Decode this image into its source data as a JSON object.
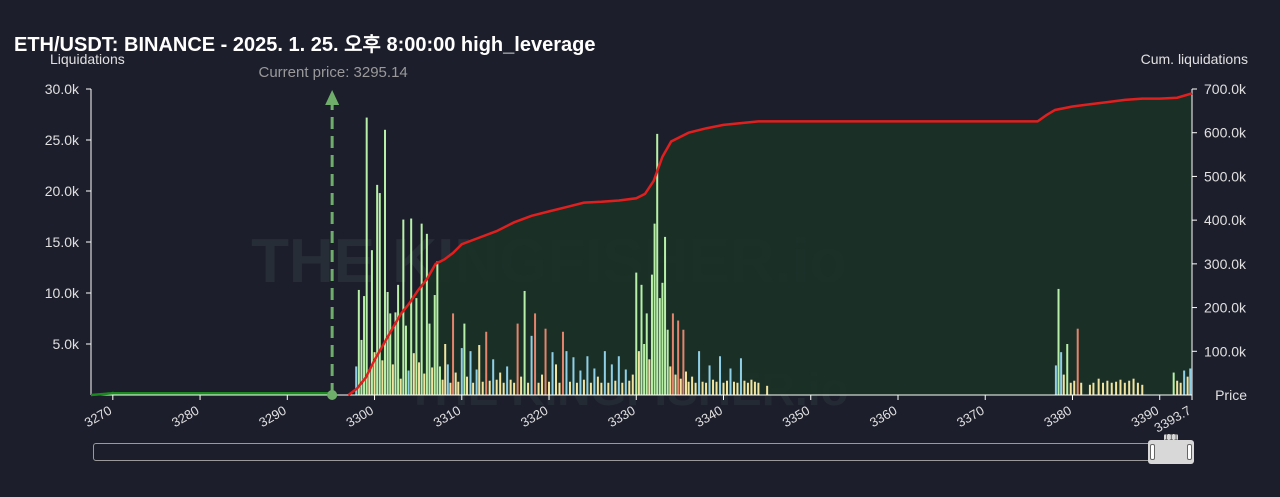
{
  "title": "ETH/USDT: BINANCE - 2025. 1. 25. 오후 8:00:00 high_leverage",
  "chart_data": {
    "type": "bar",
    "xlabel": "Price",
    "ylabel_left": "Liquidations",
    "ylabel_right": "Cum. liquidations",
    "xlim": [
      3267.5,
      3393.7
    ],
    "ylim_left": [
      0,
      30000
    ],
    "ylim_right": [
      0,
      700000
    ],
    "x_ticks": [
      "3270",
      "3280",
      "3290",
      "3300",
      "3310",
      "3320",
      "3330",
      "3340",
      "3350",
      "3360",
      "3370",
      "3380",
      "3390",
      "3393.7"
    ],
    "y_left_ticks": [
      "5.0k",
      "10.0k",
      "15.0k",
      "20.0k",
      "25.0k",
      "30.0k"
    ],
    "y_right_ticks": [
      "100.0k",
      "200.0k",
      "300.0k",
      "400.0k",
      "500.0k",
      "600.0k",
      "700.0k"
    ],
    "current_price": 3295.14,
    "current_price_label": "Current price: 3295.14",
    "watermark": "THE KINGFISHER.io",
    "colors": {
      "bar_green": "#b7f0a6",
      "bar_yellow": "#f2e3a0",
      "bar_blue": "#8fd0e8",
      "bar_red": "#e5846c",
      "cum_below": "#1a8a1f",
      "cum_above": "#e01f1f",
      "fill": "#1a3326",
      "current_line": "#6fae6a"
    },
    "bars": [
      {
        "x": 3297.9,
        "y": 2800,
        "c": "blue"
      },
      {
        "x": 3298.2,
        "y": 10300,
        "c": "green"
      },
      {
        "x": 3298.5,
        "y": 5400,
        "c": "green"
      },
      {
        "x": 3298.8,
        "y": 9700,
        "c": "green"
      },
      {
        "x": 3299.1,
        "y": 27200,
        "c": "green"
      },
      {
        "x": 3299.4,
        "y": 2500,
        "c": "yellow"
      },
      {
        "x": 3299.7,
        "y": 14200,
        "c": "green"
      },
      {
        "x": 3300.0,
        "y": 4200,
        "c": "yellow"
      },
      {
        "x": 3300.3,
        "y": 20600,
        "c": "green"
      },
      {
        "x": 3300.6,
        "y": 19800,
        "c": "green"
      },
      {
        "x": 3300.9,
        "y": 3400,
        "c": "yellow"
      },
      {
        "x": 3301.2,
        "y": 26000,
        "c": "green"
      },
      {
        "x": 3301.5,
        "y": 10100,
        "c": "green"
      },
      {
        "x": 3301.8,
        "y": 8000,
        "c": "green"
      },
      {
        "x": 3302.1,
        "y": 3000,
        "c": "yellow"
      },
      {
        "x": 3302.4,
        "y": 8100,
        "c": "green"
      },
      {
        "x": 3302.7,
        "y": 10800,
        "c": "green"
      },
      {
        "x": 3303.0,
        "y": 1600,
        "c": "yellow"
      },
      {
        "x": 3303.3,
        "y": 17200,
        "c": "green"
      },
      {
        "x": 3303.6,
        "y": 6800,
        "c": "green"
      },
      {
        "x": 3303.9,
        "y": 2400,
        "c": "blue"
      },
      {
        "x": 3304.2,
        "y": 17300,
        "c": "green"
      },
      {
        "x": 3304.5,
        "y": 4100,
        "c": "yellow"
      },
      {
        "x": 3304.8,
        "y": 9500,
        "c": "green"
      },
      {
        "x": 3305.1,
        "y": 3200,
        "c": "yellow"
      },
      {
        "x": 3305.4,
        "y": 16800,
        "c": "green"
      },
      {
        "x": 3305.7,
        "y": 2100,
        "c": "yellow"
      },
      {
        "x": 3306.0,
        "y": 15800,
        "c": "green"
      },
      {
        "x": 3306.3,
        "y": 7000,
        "c": "green"
      },
      {
        "x": 3306.6,
        "y": 2700,
        "c": "yellow"
      },
      {
        "x": 3306.9,
        "y": 9800,
        "c": "green"
      },
      {
        "x": 3307.2,
        "y": 13100,
        "c": "green"
      },
      {
        "x": 3307.5,
        "y": 2800,
        "c": "green"
      },
      {
        "x": 3307.8,
        "y": 1500,
        "c": "yellow"
      },
      {
        "x": 3308.1,
        "y": 5000,
        "c": "yellow"
      },
      {
        "x": 3308.4,
        "y": 3000,
        "c": "blue"
      },
      {
        "x": 3308.7,
        "y": 1200,
        "c": "yellow"
      },
      {
        "x": 3309.0,
        "y": 8000,
        "c": "red"
      },
      {
        "x": 3309.3,
        "y": 2200,
        "c": "yellow"
      },
      {
        "x": 3309.6,
        "y": 1300,
        "c": "yellow"
      },
      {
        "x": 3310.0,
        "y": 4600,
        "c": "blue"
      },
      {
        "x": 3310.3,
        "y": 7000,
        "c": "green"
      },
      {
        "x": 3310.6,
        "y": 1800,
        "c": "yellow"
      },
      {
        "x": 3311.0,
        "y": 4300,
        "c": "blue"
      },
      {
        "x": 3311.3,
        "y": 1200,
        "c": "yellow"
      },
      {
        "x": 3311.7,
        "y": 2500,
        "c": "blue"
      },
      {
        "x": 3312.0,
        "y": 4900,
        "c": "yellow"
      },
      {
        "x": 3312.4,
        "y": 1300,
        "c": "yellow"
      },
      {
        "x": 3312.8,
        "y": 6200,
        "c": "red"
      },
      {
        "x": 3313.2,
        "y": 1400,
        "c": "yellow"
      },
      {
        "x": 3313.6,
        "y": 3500,
        "c": "blue"
      },
      {
        "x": 3314.0,
        "y": 1500,
        "c": "yellow"
      },
      {
        "x": 3314.4,
        "y": 2200,
        "c": "yellow"
      },
      {
        "x": 3314.8,
        "y": 1200,
        "c": "yellow"
      },
      {
        "x": 3315.2,
        "y": 2800,
        "c": "blue"
      },
      {
        "x": 3315.6,
        "y": 1500,
        "c": "yellow"
      },
      {
        "x": 3316.0,
        "y": 1200,
        "c": "yellow"
      },
      {
        "x": 3316.4,
        "y": 7000,
        "c": "red"
      },
      {
        "x": 3316.8,
        "y": 1800,
        "c": "yellow"
      },
      {
        "x": 3317.2,
        "y": 10200,
        "c": "green"
      },
      {
        "x": 3317.6,
        "y": 1200,
        "c": "yellow"
      },
      {
        "x": 3318.0,
        "y": 5800,
        "c": "blue"
      },
      {
        "x": 3318.4,
        "y": 8000,
        "c": "red"
      },
      {
        "x": 3318.8,
        "y": 1200,
        "c": "yellow"
      },
      {
        "x": 3319.2,
        "y": 2000,
        "c": "yellow"
      },
      {
        "x": 3319.6,
        "y": 6500,
        "c": "red"
      },
      {
        "x": 3320.0,
        "y": 1300,
        "c": "yellow"
      },
      {
        "x": 3320.4,
        "y": 4200,
        "c": "blue"
      },
      {
        "x": 3320.8,
        "y": 3000,
        "c": "yellow"
      },
      {
        "x": 3321.2,
        "y": 1200,
        "c": "yellow"
      },
      {
        "x": 3321.6,
        "y": 6200,
        "c": "red"
      },
      {
        "x": 3322.0,
        "y": 4300,
        "c": "blue"
      },
      {
        "x": 3322.4,
        "y": 1300,
        "c": "yellow"
      },
      {
        "x": 3322.8,
        "y": 3700,
        "c": "blue"
      },
      {
        "x": 3323.2,
        "y": 1200,
        "c": "yellow"
      },
      {
        "x": 3323.6,
        "y": 2400,
        "c": "blue"
      },
      {
        "x": 3324.0,
        "y": 1500,
        "c": "yellow"
      },
      {
        "x": 3324.4,
        "y": 3800,
        "c": "blue"
      },
      {
        "x": 3324.8,
        "y": 1200,
        "c": "yellow"
      },
      {
        "x": 3325.2,
        "y": 2600,
        "c": "blue"
      },
      {
        "x": 3325.6,
        "y": 1800,
        "c": "yellow"
      },
      {
        "x": 3326.0,
        "y": 1200,
        "c": "yellow"
      },
      {
        "x": 3326.4,
        "y": 4300,
        "c": "blue"
      },
      {
        "x": 3326.8,
        "y": 1200,
        "c": "yellow"
      },
      {
        "x": 3327.2,
        "y": 3000,
        "c": "blue"
      },
      {
        "x": 3327.6,
        "y": 1400,
        "c": "yellow"
      },
      {
        "x": 3328.0,
        "y": 3800,
        "c": "blue"
      },
      {
        "x": 3328.4,
        "y": 1200,
        "c": "yellow"
      },
      {
        "x": 3328.8,
        "y": 2500,
        "c": "blue"
      },
      {
        "x": 3329.2,
        "y": 1400,
        "c": "yellow"
      },
      {
        "x": 3329.6,
        "y": 2000,
        "c": "yellow"
      },
      {
        "x": 3330.0,
        "y": 12000,
        "c": "green"
      },
      {
        "x": 3330.3,
        "y": 4300,
        "c": "yellow"
      },
      {
        "x": 3330.6,
        "y": 10800,
        "c": "green"
      },
      {
        "x": 3330.9,
        "y": 5000,
        "c": "green"
      },
      {
        "x": 3331.2,
        "y": 8000,
        "c": "green"
      },
      {
        "x": 3331.5,
        "y": 3500,
        "c": "yellow"
      },
      {
        "x": 3331.8,
        "y": 11800,
        "c": "green"
      },
      {
        "x": 3332.1,
        "y": 16800,
        "c": "green"
      },
      {
        "x": 3332.4,
        "y": 25600,
        "c": "green"
      },
      {
        "x": 3332.7,
        "y": 9500,
        "c": "green"
      },
      {
        "x": 3333.0,
        "y": 11000,
        "c": "green"
      },
      {
        "x": 3333.3,
        "y": 15500,
        "c": "green"
      },
      {
        "x": 3333.6,
        "y": 6400,
        "c": "green"
      },
      {
        "x": 3333.9,
        "y": 2800,
        "c": "yellow"
      },
      {
        "x": 3334.2,
        "y": 8000,
        "c": "red"
      },
      {
        "x": 3334.5,
        "y": 2000,
        "c": "yellow"
      },
      {
        "x": 3334.8,
        "y": 7300,
        "c": "red"
      },
      {
        "x": 3335.1,
        "y": 1600,
        "c": "yellow"
      },
      {
        "x": 3335.4,
        "y": 6400,
        "c": "red"
      },
      {
        "x": 3335.7,
        "y": 2300,
        "c": "yellow"
      },
      {
        "x": 3336.0,
        "y": 1300,
        "c": "yellow"
      },
      {
        "x": 3336.4,
        "y": 1800,
        "c": "yellow"
      },
      {
        "x": 3336.8,
        "y": 1200,
        "c": "yellow"
      },
      {
        "x": 3337.2,
        "y": 4300,
        "c": "blue"
      },
      {
        "x": 3337.6,
        "y": 1300,
        "c": "yellow"
      },
      {
        "x": 3338.0,
        "y": 1200,
        "c": "yellow"
      },
      {
        "x": 3338.4,
        "y": 2900,
        "c": "blue"
      },
      {
        "x": 3338.8,
        "y": 1500,
        "c": "yellow"
      },
      {
        "x": 3339.2,
        "y": 1300,
        "c": "yellow"
      },
      {
        "x": 3339.6,
        "y": 3800,
        "c": "blue"
      },
      {
        "x": 3340.0,
        "y": 1200,
        "c": "yellow"
      },
      {
        "x": 3340.4,
        "y": 1400,
        "c": "yellow"
      },
      {
        "x": 3340.8,
        "y": 2600,
        "c": "blue"
      },
      {
        "x": 3341.2,
        "y": 1300,
        "c": "yellow"
      },
      {
        "x": 3341.6,
        "y": 1200,
        "c": "yellow"
      },
      {
        "x": 3342.0,
        "y": 3600,
        "c": "blue"
      },
      {
        "x": 3342.4,
        "y": 1400,
        "c": "yellow"
      },
      {
        "x": 3342.8,
        "y": 1200,
        "c": "yellow"
      },
      {
        "x": 3343.2,
        "y": 1500,
        "c": "yellow"
      },
      {
        "x": 3343.6,
        "y": 1300,
        "c": "yellow"
      },
      {
        "x": 3344.0,
        "y": 1200,
        "c": "yellow"
      },
      {
        "x": 3345.0,
        "y": 900,
        "c": "yellow"
      },
      {
        "x": 3378.1,
        "y": 2900,
        "c": "blue"
      },
      {
        "x": 3378.4,
        "y": 10400,
        "c": "green"
      },
      {
        "x": 3378.7,
        "y": 4200,
        "c": "blue"
      },
      {
        "x": 3379.0,
        "y": 2000,
        "c": "yellow"
      },
      {
        "x": 3379.4,
        "y": 5000,
        "c": "green"
      },
      {
        "x": 3379.8,
        "y": 1200,
        "c": "yellow"
      },
      {
        "x": 3380.2,
        "y": 1400,
        "c": "yellow"
      },
      {
        "x": 3380.6,
        "y": 6500,
        "c": "red"
      },
      {
        "x": 3381.0,
        "y": 1200,
        "c": "yellow"
      },
      {
        "x": 3382.0,
        "y": 1000,
        "c": "yellow"
      },
      {
        "x": 3382.4,
        "y": 1200,
        "c": "yellow"
      },
      {
        "x": 3383.0,
        "y": 1600,
        "c": "yellow"
      },
      {
        "x": 3383.5,
        "y": 1200,
        "c": "yellow"
      },
      {
        "x": 3384.0,
        "y": 1400,
        "c": "yellow"
      },
      {
        "x": 3384.5,
        "y": 1200,
        "c": "yellow"
      },
      {
        "x": 3385.0,
        "y": 1300,
        "c": "yellow"
      },
      {
        "x": 3385.5,
        "y": 1500,
        "c": "yellow"
      },
      {
        "x": 3386.0,
        "y": 1200,
        "c": "yellow"
      },
      {
        "x": 3386.5,
        "y": 1400,
        "c": "yellow"
      },
      {
        "x": 3387.0,
        "y": 1600,
        "c": "yellow"
      },
      {
        "x": 3387.5,
        "y": 1200,
        "c": "yellow"
      },
      {
        "x": 3388.0,
        "y": 1000,
        "c": "yellow"
      },
      {
        "x": 3391.6,
        "y": 2200,
        "c": "green"
      },
      {
        "x": 3392.0,
        "y": 1400,
        "c": "yellow"
      },
      {
        "x": 3392.4,
        "y": 1200,
        "c": "yellow"
      },
      {
        "x": 3392.8,
        "y": 2400,
        "c": "blue"
      },
      {
        "x": 3393.2,
        "y": 1800,
        "c": "yellow"
      },
      {
        "x": 3393.5,
        "y": 2600,
        "c": "blue"
      },
      {
        "x": 3269.5,
        "y": 250,
        "c": "green"
      },
      {
        "x": 3270.0,
        "y": 300,
        "c": "green"
      },
      {
        "x": 3270.4,
        "y": 250,
        "c": "green"
      }
    ],
    "cumulative": {
      "below": [
        [
          3267.5,
          0
        ],
        [
          3270,
          4000
        ],
        [
          3295.14,
          4000
        ]
      ],
      "above": [
        [
          3297,
          0
        ],
        [
          3298,
          15000
        ],
        [
          3299,
          40000
        ],
        [
          3300,
          80000
        ],
        [
          3301,
          115000
        ],
        [
          3302,
          150000
        ],
        [
          3303,
          185000
        ],
        [
          3304,
          210000
        ],
        [
          3305,
          240000
        ],
        [
          3306,
          265000
        ],
        [
          3307,
          300000
        ],
        [
          3308,
          310000
        ],
        [
          3309,
          325000
        ],
        [
          3310,
          345000
        ],
        [
          3312,
          360000
        ],
        [
          3314,
          375000
        ],
        [
          3316,
          395000
        ],
        [
          3318,
          410000
        ],
        [
          3320,
          420000
        ],
        [
          3322,
          430000
        ],
        [
          3324,
          440000
        ],
        [
          3326,
          442000
        ],
        [
          3328,
          445000
        ],
        [
          3330,
          450000
        ],
        [
          3331,
          460000
        ],
        [
          3332,
          490000
        ],
        [
          3333,
          545000
        ],
        [
          3334,
          580000
        ],
        [
          3336,
          600000
        ],
        [
          3338,
          610000
        ],
        [
          3340,
          618000
        ],
        [
          3342,
          622000
        ],
        [
          3344,
          626000
        ],
        [
          3350,
          626000
        ],
        [
          3360,
          626000
        ],
        [
          3370,
          626000
        ],
        [
          3376,
          626000
        ],
        [
          3377,
          640000
        ],
        [
          3378,
          652000
        ],
        [
          3380,
          660000
        ],
        [
          3382,
          665000
        ],
        [
          3384,
          670000
        ],
        [
          3386,
          675000
        ],
        [
          3388,
          678000
        ],
        [
          3390,
          678000
        ],
        [
          3392,
          680000
        ],
        [
          3393.7,
          690000
        ]
      ]
    }
  }
}
